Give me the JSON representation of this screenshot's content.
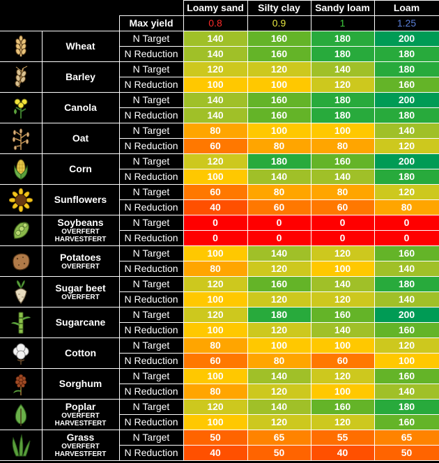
{
  "header": {
    "soils": [
      "Loamy sand",
      "Silty clay",
      "Sandy loam",
      "Loam"
    ],
    "max_yield_label": "Max yield",
    "max_yield": [
      "0.8",
      "0.9",
      "1",
      "1.25"
    ],
    "max_yield_colors": [
      "#ff2a2a",
      "#e8e840",
      "#3ecf3e",
      "#5a7fd8"
    ]
  },
  "row_labels": {
    "target": "N Target",
    "reduction": "N Reduction"
  },
  "crops": [
    {
      "name": "Wheat",
      "sub": [],
      "icon": "wheat-icon",
      "target": [
        140,
        160,
        180,
        200
      ],
      "reduction": [
        140,
        160,
        180,
        180
      ]
    },
    {
      "name": "Barley",
      "sub": [],
      "icon": "barley-icon",
      "target": [
        120,
        120,
        140,
        180
      ],
      "reduction": [
        100,
        100,
        120,
        160
      ]
    },
    {
      "name": "Canola",
      "sub": [],
      "icon": "canola-icon",
      "target": [
        140,
        160,
        180,
        200
      ],
      "reduction": [
        140,
        160,
        180,
        180
      ]
    },
    {
      "name": "Oat",
      "sub": [],
      "icon": "oat-icon",
      "target": [
        80,
        100,
        100,
        140
      ],
      "reduction": [
        60,
        80,
        80,
        120
      ]
    },
    {
      "name": "Corn",
      "sub": [],
      "icon": "corn-icon",
      "target": [
        120,
        180,
        160,
        200
      ],
      "reduction": [
        100,
        140,
        140,
        180
      ]
    },
    {
      "name": "Sunflowers",
      "sub": [],
      "icon": "sunflower-icon",
      "target": [
        60,
        80,
        80,
        120
      ],
      "reduction": [
        40,
        60,
        60,
        80
      ]
    },
    {
      "name": "Soybeans",
      "sub": [
        "OVERFERT",
        "HARVESTFERT"
      ],
      "icon": "soybean-icon",
      "target": [
        0,
        0,
        0,
        0
      ],
      "reduction": [
        0,
        0,
        0,
        0
      ]
    },
    {
      "name": "Potatoes",
      "sub": [
        "OVERFERT"
      ],
      "icon": "potato-icon",
      "target": [
        100,
        140,
        120,
        160
      ],
      "reduction": [
        80,
        120,
        100,
        140
      ]
    },
    {
      "name": "Sugar beet",
      "sub": [
        "OVERFERT"
      ],
      "icon": "sugarbeet-icon",
      "target": [
        120,
        160,
        140,
        180
      ],
      "reduction": [
        100,
        120,
        120,
        140
      ]
    },
    {
      "name": "Sugarcane",
      "sub": [],
      "icon": "sugarcane-icon",
      "target": [
        120,
        180,
        160,
        200
      ],
      "reduction": [
        100,
        120,
        140,
        160
      ]
    },
    {
      "name": "Cotton",
      "sub": [],
      "icon": "cotton-icon",
      "target": [
        80,
        100,
        100,
        120
      ],
      "reduction": [
        60,
        80,
        60,
        100
      ]
    },
    {
      "name": "Sorghum",
      "sub": [],
      "icon": "sorghum-icon",
      "target": [
        100,
        140,
        120,
        160
      ],
      "reduction": [
        80,
        120,
        100,
        140
      ]
    },
    {
      "name": "Poplar",
      "sub": [
        "OVERFERT",
        "HARVESTFERT"
      ],
      "icon": "poplar-icon",
      "target": [
        120,
        140,
        160,
        180
      ],
      "reduction": [
        100,
        120,
        120,
        160
      ]
    },
    {
      "name": "Grass",
      "sub": [
        "OVERFERT",
        "HARVESTFERT"
      ],
      "icon": "grass-icon",
      "target": [
        50,
        65,
        55,
        65
      ],
      "reduction": [
        40,
        50,
        40,
        50
      ]
    }
  ]
}
